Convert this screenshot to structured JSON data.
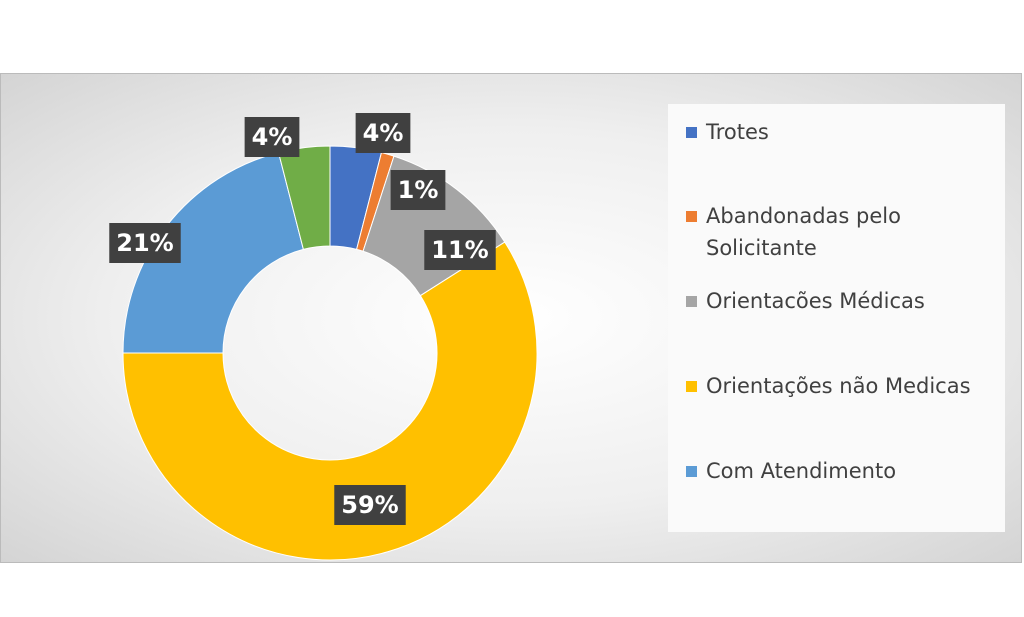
{
  "chart_data": {
    "type": "donut",
    "categories": [
      "Trotes",
      "Abandonadas pelo Solicitante",
      "Orientacões Médicas",
      "Orientações não Medicas",
      "Com Atendimento",
      null
    ],
    "values": [
      4,
      1,
      11,
      59,
      21,
      4
    ],
    "value_labels": [
      "4%",
      "1%",
      "11%",
      "59%",
      "21%",
      "4%"
    ],
    "colors": [
      "#4472c4",
      "#ed7d31",
      "#a5a5a5",
      "#ffc000",
      "#5b9bd5",
      "#70ad47"
    ],
    "legend": "right"
  }
}
